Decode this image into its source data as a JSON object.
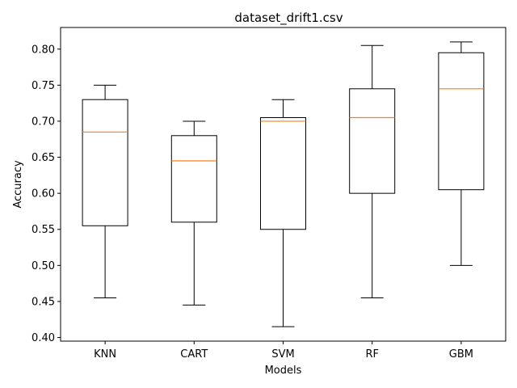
{
  "chart_data": {
    "type": "box",
    "title": "dataset_drift1.csv",
    "xlabel": "Models",
    "ylabel": "Accuracy",
    "categories": [
      "KNN",
      "CART",
      "SVM",
      "RF",
      "GBM"
    ],
    "boxes": [
      {
        "name": "KNN",
        "whisker_low": 0.455,
        "q1": 0.555,
        "median": 0.685,
        "q3": 0.73,
        "whisker_high": 0.75
      },
      {
        "name": "CART",
        "whisker_low": 0.445,
        "q1": 0.56,
        "median": 0.645,
        "q3": 0.68,
        "whisker_high": 0.7
      },
      {
        "name": "SVM",
        "whisker_low": 0.415,
        "q1": 0.55,
        "median": 0.7,
        "q3": 0.705,
        "whisker_high": 0.73
      },
      {
        "name": "RF",
        "whisker_low": 0.455,
        "q1": 0.6,
        "median": 0.705,
        "q3": 0.745,
        "whisker_high": 0.805
      },
      {
        "name": "GBM",
        "whisker_low": 0.5,
        "q1": 0.605,
        "median": 0.745,
        "q3": 0.795,
        "whisker_high": 0.81
      }
    ],
    "yticks": [
      0.4,
      0.45,
      0.5,
      0.55,
      0.6,
      0.65,
      0.7,
      0.75,
      0.8
    ],
    "ytick_labels": [
      "0.40",
      "0.45",
      "0.50",
      "0.55",
      "0.60",
      "0.65",
      "0.70",
      "0.75",
      "0.80"
    ],
    "ylim": [
      0.395,
      0.83
    ],
    "grid": false,
    "colors": {
      "box": "#000000",
      "median": "#ff7f0e"
    }
  }
}
